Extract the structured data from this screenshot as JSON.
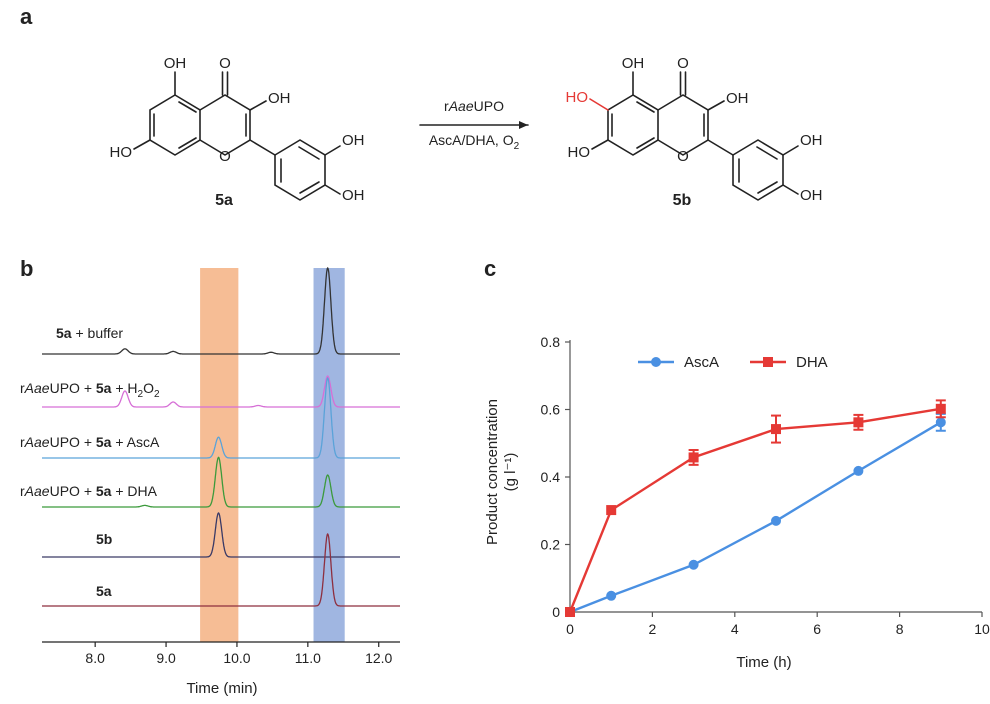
{
  "panels": {
    "a": "a",
    "b": "b",
    "c": "c"
  },
  "scheme": {
    "reactant": {
      "compound_bold": "5a",
      "substituents": [
        "OH",
        "O",
        "OH",
        "HO",
        "O",
        "OH",
        "OH"
      ]
    },
    "product": {
      "compound_bold": "5b",
      "new_group": "HO",
      "substituents": [
        "OH",
        "O",
        "OH",
        "HO",
        "O",
        "OH",
        "OH"
      ]
    },
    "enzyme": {
      "prefix": "r",
      "italic": "Aae",
      "suffix": "UPO"
    },
    "conditions": {
      "main": "AscA/DHA, O",
      "sub": "2"
    },
    "highlight_color": "#e53935"
  },
  "hplc": {
    "xlabel": "Time (min)",
    "xticks": [
      "8.0",
      "9.0",
      "10.0",
      "11.0",
      "12.0"
    ],
    "xlim": [
      7.25,
      12.3
    ],
    "band_orange": {
      "from": 9.48,
      "to": 10.02,
      "color": "#f4b183"
    },
    "band_blue": {
      "from": 11.08,
      "to": 11.52,
      "color": "#8fa9dc"
    },
    "traces": [
      {
        "label_bold": "5a",
        "label_plain": " + buffer",
        "color": "#333333",
        "peaks": [
          [
            8.42,
            0.06
          ],
          [
            9.1,
            0.03
          ],
          [
            10.48,
            0.02
          ],
          [
            11.28,
            1.0
          ]
        ]
      },
      {
        "label_prefix": "r",
        "label_italic": "Aae",
        "label_mid": "UPO + ",
        "label_bold": "5a",
        "label_plain": " + H",
        "label_sub1": "2",
        "label_tail": "O",
        "label_sub2": "2",
        "color": "#d66fd6",
        "peaks": [
          [
            8.42,
            0.32
          ],
          [
            9.1,
            0.1
          ],
          [
            10.3,
            0.03
          ],
          [
            11.28,
            0.62
          ]
        ]
      },
      {
        "label_prefix": "r",
        "label_italic": "Aae",
        "label_mid": "UPO + ",
        "label_bold": "5a",
        "label_plain": " + AscA",
        "color": "#5aa3d9",
        "peaks": [
          [
            9.74,
            0.26
          ],
          [
            11.28,
            1.0
          ]
        ]
      },
      {
        "label_prefix": "r",
        "label_italic": "Aae",
        "label_mid": "UPO + ",
        "label_bold": "5a",
        "label_plain": " + DHA",
        "color": "#3b9a3b",
        "peaks": [
          [
            8.7,
            0.02
          ],
          [
            9.74,
            0.62
          ],
          [
            11.28,
            0.4
          ]
        ]
      },
      {
        "label_bold": "5b",
        "color": "#3a3a66",
        "peaks": [
          [
            9.74,
            0.55
          ]
        ]
      },
      {
        "label_bold": "5a",
        "color": "#8e2f3f",
        "peaks": [
          [
            11.28,
            0.9
          ]
        ]
      }
    ]
  },
  "chart_data": {
    "type": "line",
    "xlabel": "Time (h)",
    "ylabel": "Product concentration",
    "ylabel_unit": "(g l⁻¹)",
    "xlim": [
      0,
      10
    ],
    "ylim": [
      0,
      0.8
    ],
    "xticks": [
      "0",
      "2",
      "4",
      "6",
      "8",
      "10"
    ],
    "yticks": [
      "0",
      "0.2",
      "0.4",
      "0.6",
      "0.8"
    ],
    "legend_position": "top-left",
    "series": [
      {
        "name": "AscA",
        "color": "#4a90e2",
        "marker": "circle",
        "x": [
          0,
          1,
          3,
          5,
          7,
          9
        ],
        "y": [
          0.0,
          0.048,
          0.14,
          0.27,
          0.418,
          0.562
        ],
        "err": [
          0,
          0,
          0,
          0,
          0,
          0.025
        ]
      },
      {
        "name": "DHA",
        "color": "#e53935",
        "marker": "square",
        "x": [
          0,
          1,
          3,
          5,
          7,
          9
        ],
        "y": [
          0.0,
          0.302,
          0.458,
          0.542,
          0.562,
          0.602
        ],
        "err": [
          0,
          0,
          0.022,
          0.04,
          0.022,
          0.025
        ]
      }
    ]
  }
}
